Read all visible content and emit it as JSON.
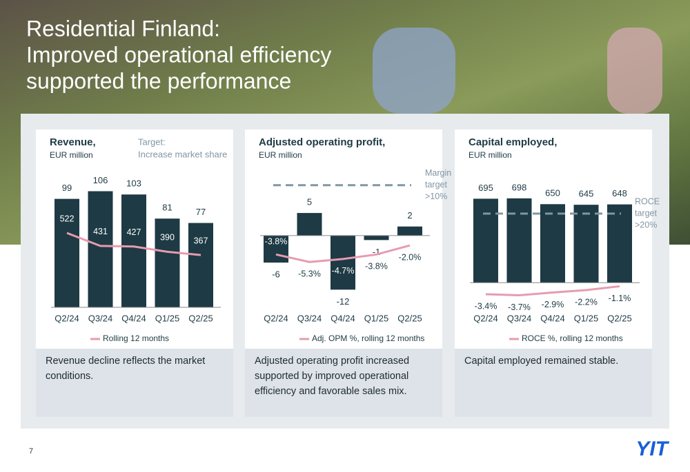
{
  "title": [
    "Residential Finland:",
    "Improved operational efficiency",
    "supported the performance"
  ],
  "captions": [
    [
      "Revenue decline reflects the market",
      "conditions."
    ],
    [
      "Adjusted operating profit increased",
      "supported by improved operational",
      "efficiency and favorable sales mix."
    ],
    [
      "Capital employed remained stable."
    ]
  ],
  "page_number": "7",
  "logo": "YIT",
  "chart_data": [
    {
      "type": "bar",
      "title": "Revenue,",
      "subtitle": "EUR million",
      "annotation": [
        "Target:",
        "Increase market share"
      ],
      "categories": [
        "Q2/24",
        "Q3/24",
        "Q4/24",
        "Q1/25",
        "Q2/25"
      ],
      "ylim": [
        0,
        117
      ],
      "y2lim": [
        0,
        900
      ],
      "series": [
        {
          "type": "bar",
          "color": "#1e3a44",
          "values": [
            99,
            106,
            103,
            81,
            77
          ]
        },
        {
          "type": "line",
          "name": "Rolling 12 months",
          "color": "#e79bb0",
          "axis": "y2",
          "values": [
            522,
            431,
            427,
            390,
            367
          ]
        }
      ]
    },
    {
      "type": "bar",
      "title": "Adjusted operating profit,",
      "subtitle": "EUR million",
      "categories": [
        "Q2/24",
        "Q3/24",
        "Q4/24",
        "Q1/25",
        "Q2/25"
      ],
      "ylim": [
        -15,
        12.5
      ],
      "y2lim": [
        -13.5,
        11.2
      ],
      "target_line": {
        "value": 10,
        "axis": "y2",
        "label": [
          "Margin",
          "target",
          ">10%"
        ]
      },
      "series": [
        {
          "type": "bar",
          "color": "#1e3a44",
          "values": [
            -6,
            5,
            -12,
            -1,
            2
          ]
        },
        {
          "type": "line",
          "name": "Adj. OPM %, rolling 12 months",
          "color": "#e79bb0",
          "axis": "y2",
          "values": [
            -3.8,
            -5.3,
            -4.7,
            -3.8,
            -2.0
          ],
          "value_labels": [
            "-3.8%",
            "-5.3%",
            "-4.7%",
            "-3.8%",
            "-2.0%"
          ]
        }
      ]
    },
    {
      "type": "bar",
      "title": "Capital employed,",
      "subtitle": "EUR million",
      "categories": [
        "Q2/24",
        "Q3/24",
        "Q4/24",
        "Q1/25",
        "Q2/25"
      ],
      "ylim": [
        -170,
        800
      ],
      "y2lim": [
        -6,
        28
      ],
      "target_line": {
        "value": 20,
        "axis": "y2",
        "label": [
          "ROCE",
          "target",
          ">20%"
        ]
      },
      "series": [
        {
          "type": "bar",
          "color": "#1e3a44",
          "values": [
            695,
            698,
            650,
            645,
            648
          ]
        },
        {
          "type": "line",
          "name": "ROCE %, rolling 12 months",
          "color": "#e79bb0",
          "axis": "y2",
          "values": [
            -3.4,
            -3.7,
            -2.9,
            -2.2,
            -1.1
          ],
          "value_labels": [
            "-3.4%",
            "-3.7%",
            "-2.9%",
            "-2.2%",
            "-1.1%"
          ]
        }
      ]
    }
  ]
}
